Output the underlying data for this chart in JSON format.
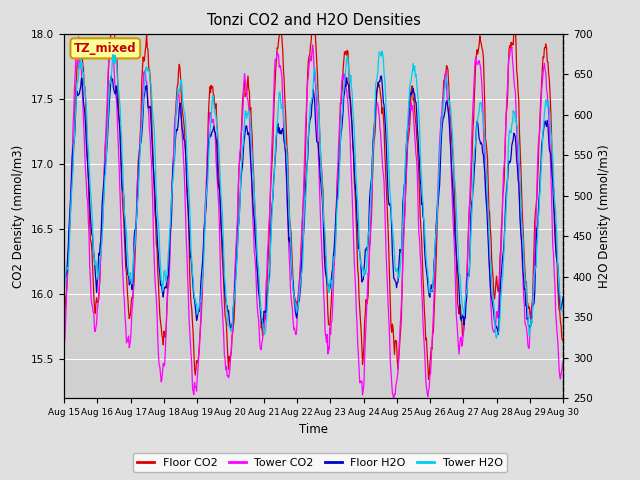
{
  "title": "Tonzi CO2 and H2O Densities",
  "xlabel": "Time",
  "ylabel_left": "CO2 Density (mmol/m3)",
  "ylabel_right": "H2O Density (mmol/m3)",
  "annotation": "TZ_mixed",
  "annotation_color": "#cc0000",
  "annotation_bg": "#ffff99",
  "annotation_border": "#cc9900",
  "ylim_left": [
    15.2,
    18.0
  ],
  "ylim_right": [
    250,
    700
  ],
  "bg_color": "#e0e0e0",
  "plot_bg_color": "#d0d0d0",
  "grid_color": "#ffffff",
  "line_colors": {
    "floor_co2": "#dd0000",
    "tower_co2": "#ff00ff",
    "floor_h2o": "#0000cc",
    "tower_h2o": "#00ccee"
  },
  "legend_labels": [
    "Floor CO2",
    "Tower CO2",
    "Floor H2O",
    "Tower H2O"
  ],
  "xtick_labels": [
    "Aug 15",
    "Aug 16",
    "Aug 17",
    "Aug 18",
    "Aug 19",
    "Aug 20",
    "Aug 21",
    "Aug 22",
    "Aug 23",
    "Aug 24",
    "Aug 25",
    "Aug 26",
    "Aug 27",
    "Aug 28",
    "Aug 29",
    "Aug 30"
  ],
  "n_days": 16,
  "seed": 42
}
